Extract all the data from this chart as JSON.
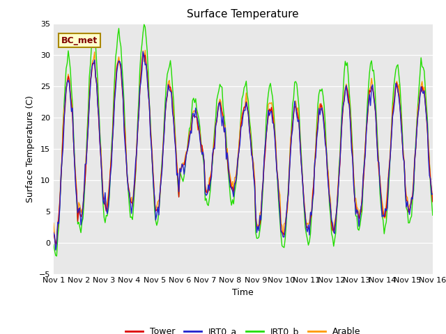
{
  "title": "Surface Temperature",
  "ylabel": "Surface Temperature (C)",
  "xlabel": "Time",
  "ylim": [
    -5,
    35
  ],
  "annotation": "BC_met",
  "legend": [
    "Tower",
    "IRT0_a",
    "IRT0_b",
    "Arable"
  ],
  "colors": {
    "Tower": "#dd0000",
    "IRT0_a": "#2222cc",
    "IRT0_b": "#22dd00",
    "Arable": "#ff9900"
  },
  "background_color": "#e8e8e8",
  "fig_background": "#ffffff",
  "title_fontsize": 11,
  "axis_label_fontsize": 9,
  "tick_fontsize": 8
}
